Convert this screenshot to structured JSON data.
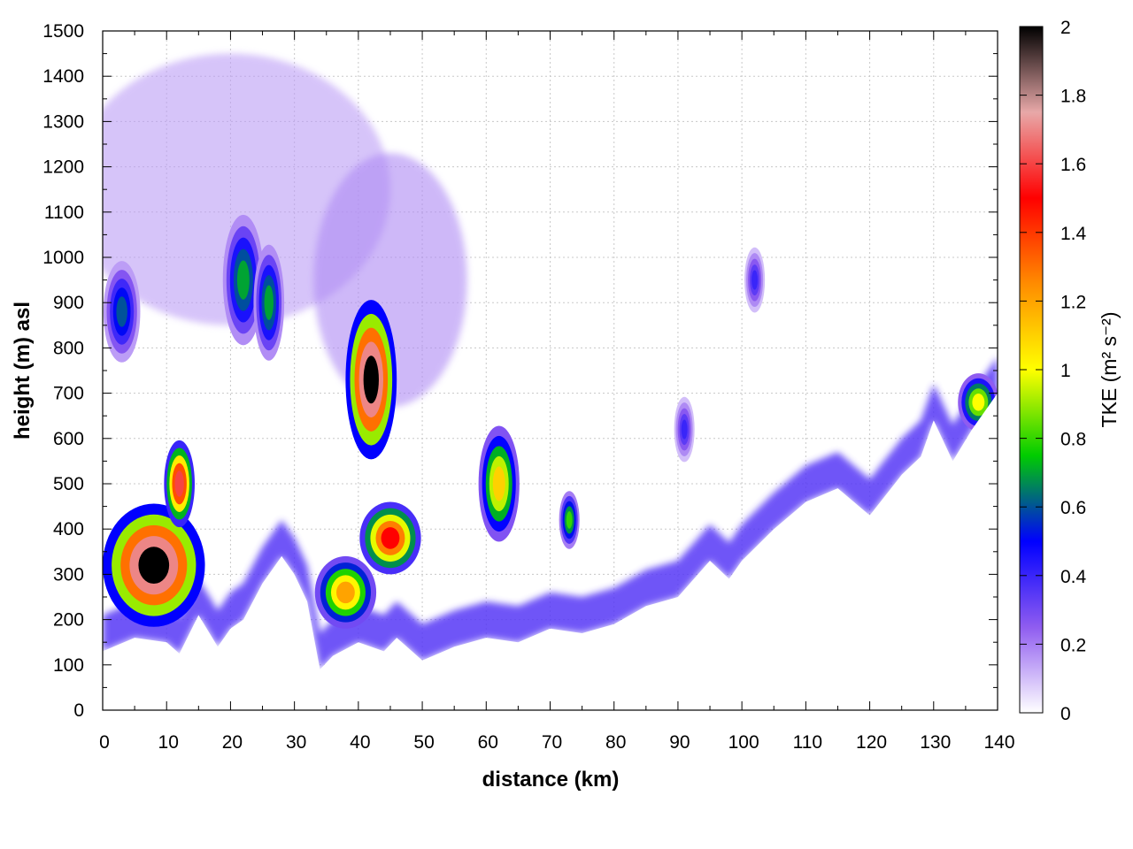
{
  "chart_data": {
    "type": "heatmap",
    "xlabel": "distance (km)",
    "ylabel": "height (m) asl",
    "xlim": [
      0,
      140
    ],
    "ylim": [
      0,
      1500
    ],
    "x_ticks": [
      "0",
      "10",
      "20",
      "30",
      "40",
      "50",
      "60",
      "70",
      "80",
      "90",
      "100",
      "110",
      "120",
      "130",
      "140"
    ],
    "y_ticks": [
      "0",
      "100",
      "200",
      "300",
      "400",
      "500",
      "600",
      "700",
      "800",
      "900",
      "1000",
      "1100",
      "1200",
      "1300",
      "1400",
      "1500"
    ],
    "colorbar": {
      "label": "TKE (m² s⁻²)",
      "range": [
        0,
        2
      ],
      "ticks": [
        "0",
        "0.2",
        "0.4",
        "0.6",
        "0.8",
        "1",
        "1.2",
        "1.4",
        "1.6",
        "1.8",
        "2"
      ],
      "colors": [
        "#ffffff",
        "#8f5cf0",
        "#0000ff",
        "#00cc00",
        "#ffff00",
        "#ff8c00",
        "#ff0000",
        "#e8a8a8",
        "#000000"
      ]
    },
    "grid": true,
    "terrain": [
      [
        0,
        130
      ],
      [
        5,
        160
      ],
      [
        10,
        150
      ],
      [
        12,
        125
      ],
      [
        15,
        210
      ],
      [
        18,
        140
      ],
      [
        20,
        180
      ],
      [
        22,
        200
      ],
      [
        25,
        280
      ],
      [
        28,
        340
      ],
      [
        30,
        300
      ],
      [
        32,
        240
      ],
      [
        34,
        90
      ],
      [
        36,
        120
      ],
      [
        40,
        150
      ],
      [
        44,
        130
      ],
      [
        46,
        160
      ],
      [
        50,
        110
      ],
      [
        55,
        140
      ],
      [
        60,
        160
      ],
      [
        65,
        150
      ],
      [
        70,
        180
      ],
      [
        75,
        170
      ],
      [
        80,
        190
      ],
      [
        85,
        230
      ],
      [
        90,
        250
      ],
      [
        95,
        330
      ],
      [
        98,
        290
      ],
      [
        100,
        330
      ],
      [
        105,
        400
      ],
      [
        110,
        460
      ],
      [
        115,
        490
      ],
      [
        120,
        430
      ],
      [
        125,
        520
      ],
      [
        128,
        560
      ],
      [
        130,
        640
      ],
      [
        133,
        550
      ],
      [
        136,
        620
      ],
      [
        140,
        700
      ]
    ],
    "features": [
      {
        "x": 8,
        "y": 320,
        "w": 5,
        "h": 170,
        "value": 2.0
      },
      {
        "x": 12,
        "y": 500,
        "w": 1.5,
        "h": 120,
        "value": 1.6
      },
      {
        "x": 42,
        "y": 730,
        "w": 2.5,
        "h": 220,
        "value": 2.0
      },
      {
        "x": 45,
        "y": 380,
        "w": 3,
        "h": 100,
        "value": 1.5
      },
      {
        "x": 38,
        "y": 260,
        "w": 3,
        "h": 100,
        "value": 1.2
      },
      {
        "x": 3,
        "y": 880,
        "w": 1.8,
        "h": 140,
        "value": 0.6
      },
      {
        "x": 22,
        "y": 950,
        "w": 2,
        "h": 180,
        "value": 0.7
      },
      {
        "x": 26,
        "y": 900,
        "w": 1.5,
        "h": 160,
        "value": 0.7
      },
      {
        "x": 62,
        "y": 500,
        "w": 2,
        "h": 160,
        "value": 1.1
      },
      {
        "x": 73,
        "y": 420,
        "w": 1,
        "h": 80,
        "value": 0.8
      },
      {
        "x": 91,
        "y": 620,
        "w": 1,
        "h": 90,
        "value": 0.4
      },
      {
        "x": 102,
        "y": 950,
        "w": 1,
        "h": 90,
        "value": 0.4
      },
      {
        "x": 137,
        "y": 680,
        "w": 2,
        "h": 80,
        "value": 1.0
      }
    ]
  }
}
